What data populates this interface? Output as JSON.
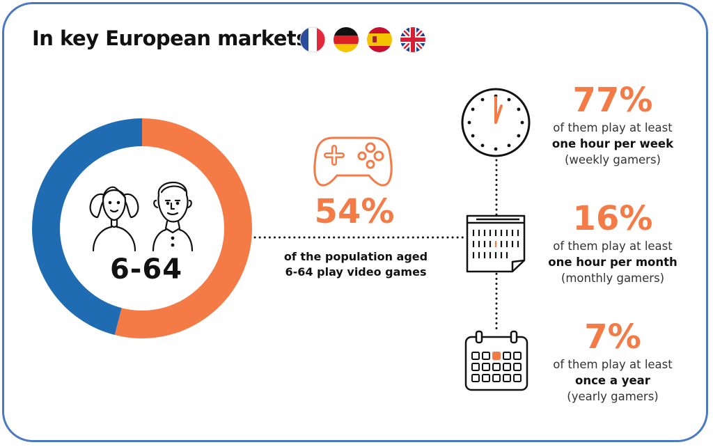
{
  "header": {
    "title": "In key European markets",
    "flags": [
      "france-flag",
      "germany-flag",
      "spain-flag",
      "uk-flag"
    ]
  },
  "colors": {
    "orange": "#f47a46",
    "blue": "#1f6cb3",
    "border": "#4a78c3"
  },
  "chart_data": {
    "type": "pie",
    "slices": [
      {
        "label": "play video games",
        "value": 54,
        "color": "#f47a46"
      },
      {
        "label": "",
        "value": 46,
        "color": "#1f6cb3"
      }
    ],
    "center_label": "6-64"
  },
  "main_stat": {
    "percent": "54%",
    "description": "of the population aged 6-64 play video games"
  },
  "stats": [
    {
      "percent": "77%",
      "line1": "of them play at least",
      "bold": "one hour per week",
      "note": "(weekly gamers)",
      "icon": "clock-icon"
    },
    {
      "percent": "16%",
      "line1": "of them play at least",
      "bold": "one hour per month",
      "note": "(monthly gamers)",
      "icon": "tear-off-calendar-icon"
    },
    {
      "percent": "7%",
      "line1": "of them play at least",
      "bold": "once a year",
      "note": "(yearly gamers)",
      "icon": "calendar-icon"
    }
  ]
}
